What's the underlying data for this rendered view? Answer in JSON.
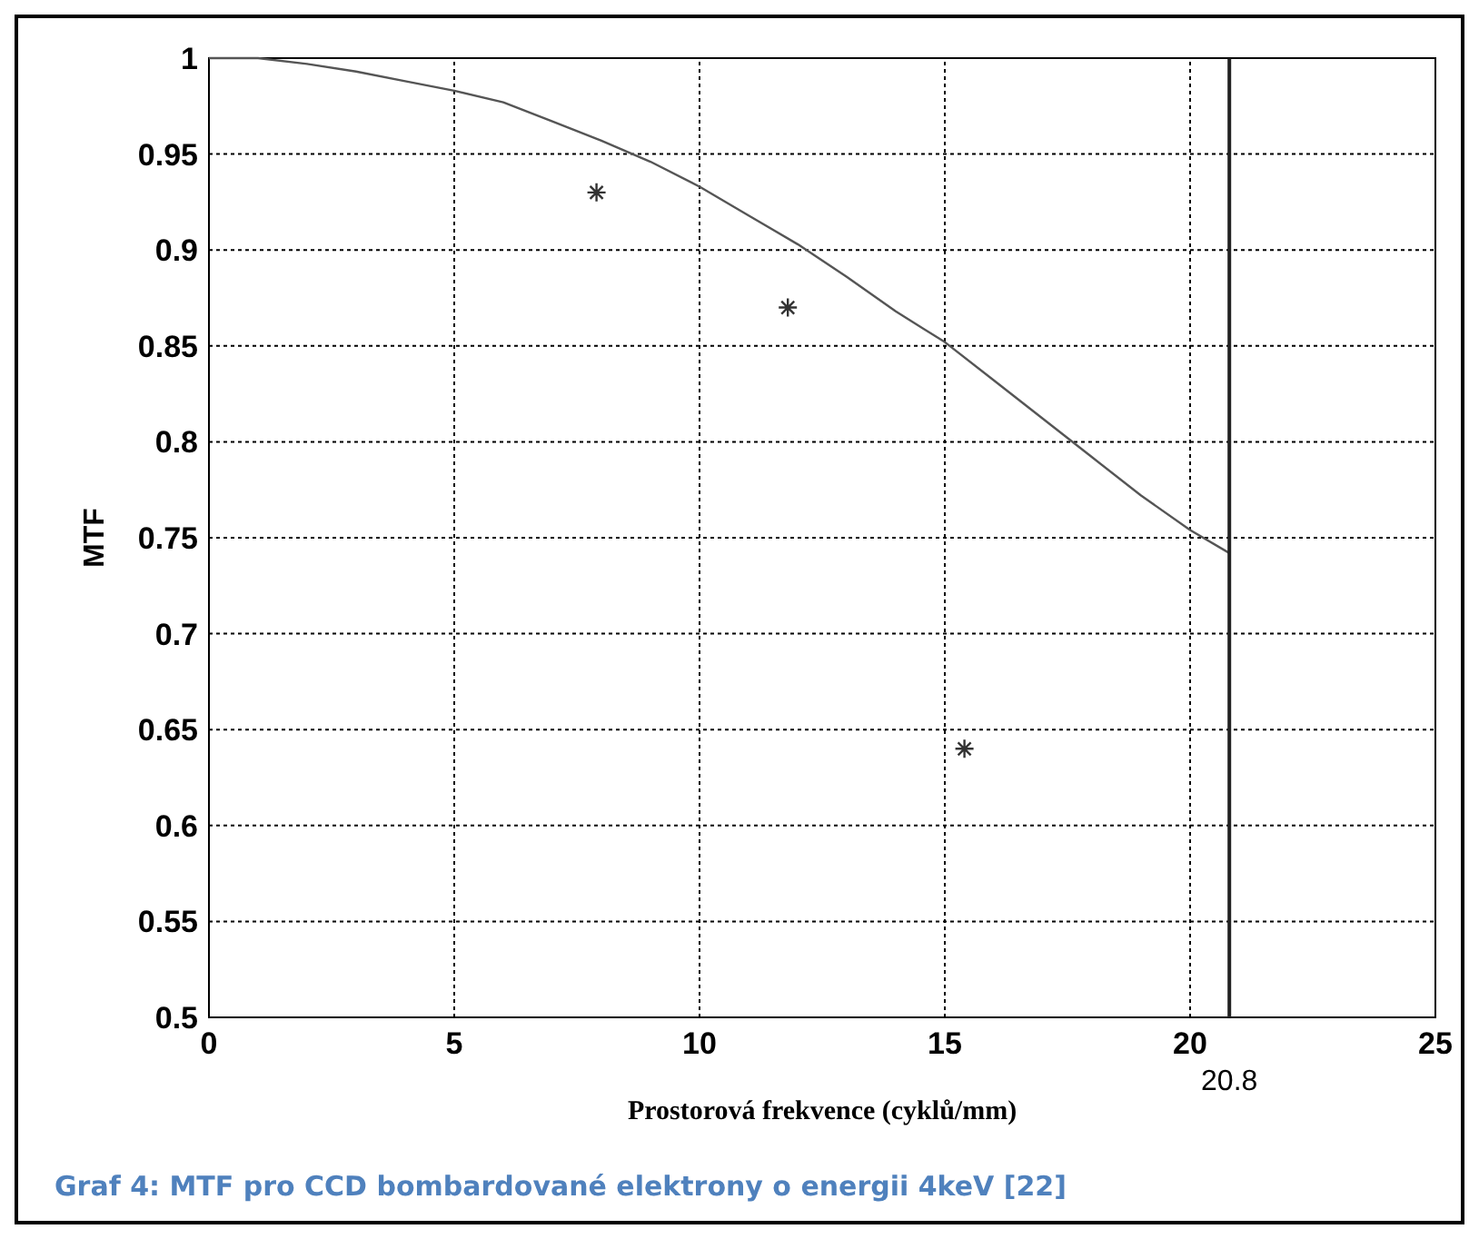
{
  "chart_data": {
    "type": "line",
    "xlabel": "Prostorová frekvence (cyklů/mm)",
    "ylabel": "MTF",
    "xlim": [
      0,
      25
    ],
    "ylim": [
      0.5,
      1
    ],
    "xticks": [
      0,
      5,
      10,
      15,
      20,
      25
    ],
    "yticks": [
      0.5,
      0.55,
      0.6,
      0.65,
      0.7,
      0.75,
      0.8,
      0.85,
      0.9,
      0.95,
      1
    ],
    "grid": true,
    "series": [
      {
        "color": "#555555",
        "x": [
          0,
          1,
          2,
          3,
          4,
          5,
          6,
          7,
          8,
          9,
          10,
          11,
          12,
          13,
          14,
          15,
          16,
          17,
          18,
          19,
          20,
          20.8
        ],
        "values": [
          1,
          1,
          0.997,
          0.993,
          0.988,
          0.983,
          0.977,
          0.967,
          0.957,
          0.946,
          0.933,
          0.918,
          0.903,
          0.886,
          0.868,
          0.852,
          0.832,
          0.812,
          0.792,
          0.772,
          0.754,
          0.742
        ]
      },
      {
        "type": "scatter",
        "marker": "cross",
        "color": "#333333",
        "x": [
          7.9,
          11.8,
          15.4
        ],
        "values": [
          0.93,
          0.87,
          0.64
        ]
      }
    ],
    "ref_lines": [
      {
        "axis": "x",
        "value": 20.8,
        "label": "20.8",
        "color": "#222222"
      }
    ],
    "annotations": [
      "Graf 4: MTF pro CCD bombardované elektrony o energii 4keV [22]"
    ]
  }
}
